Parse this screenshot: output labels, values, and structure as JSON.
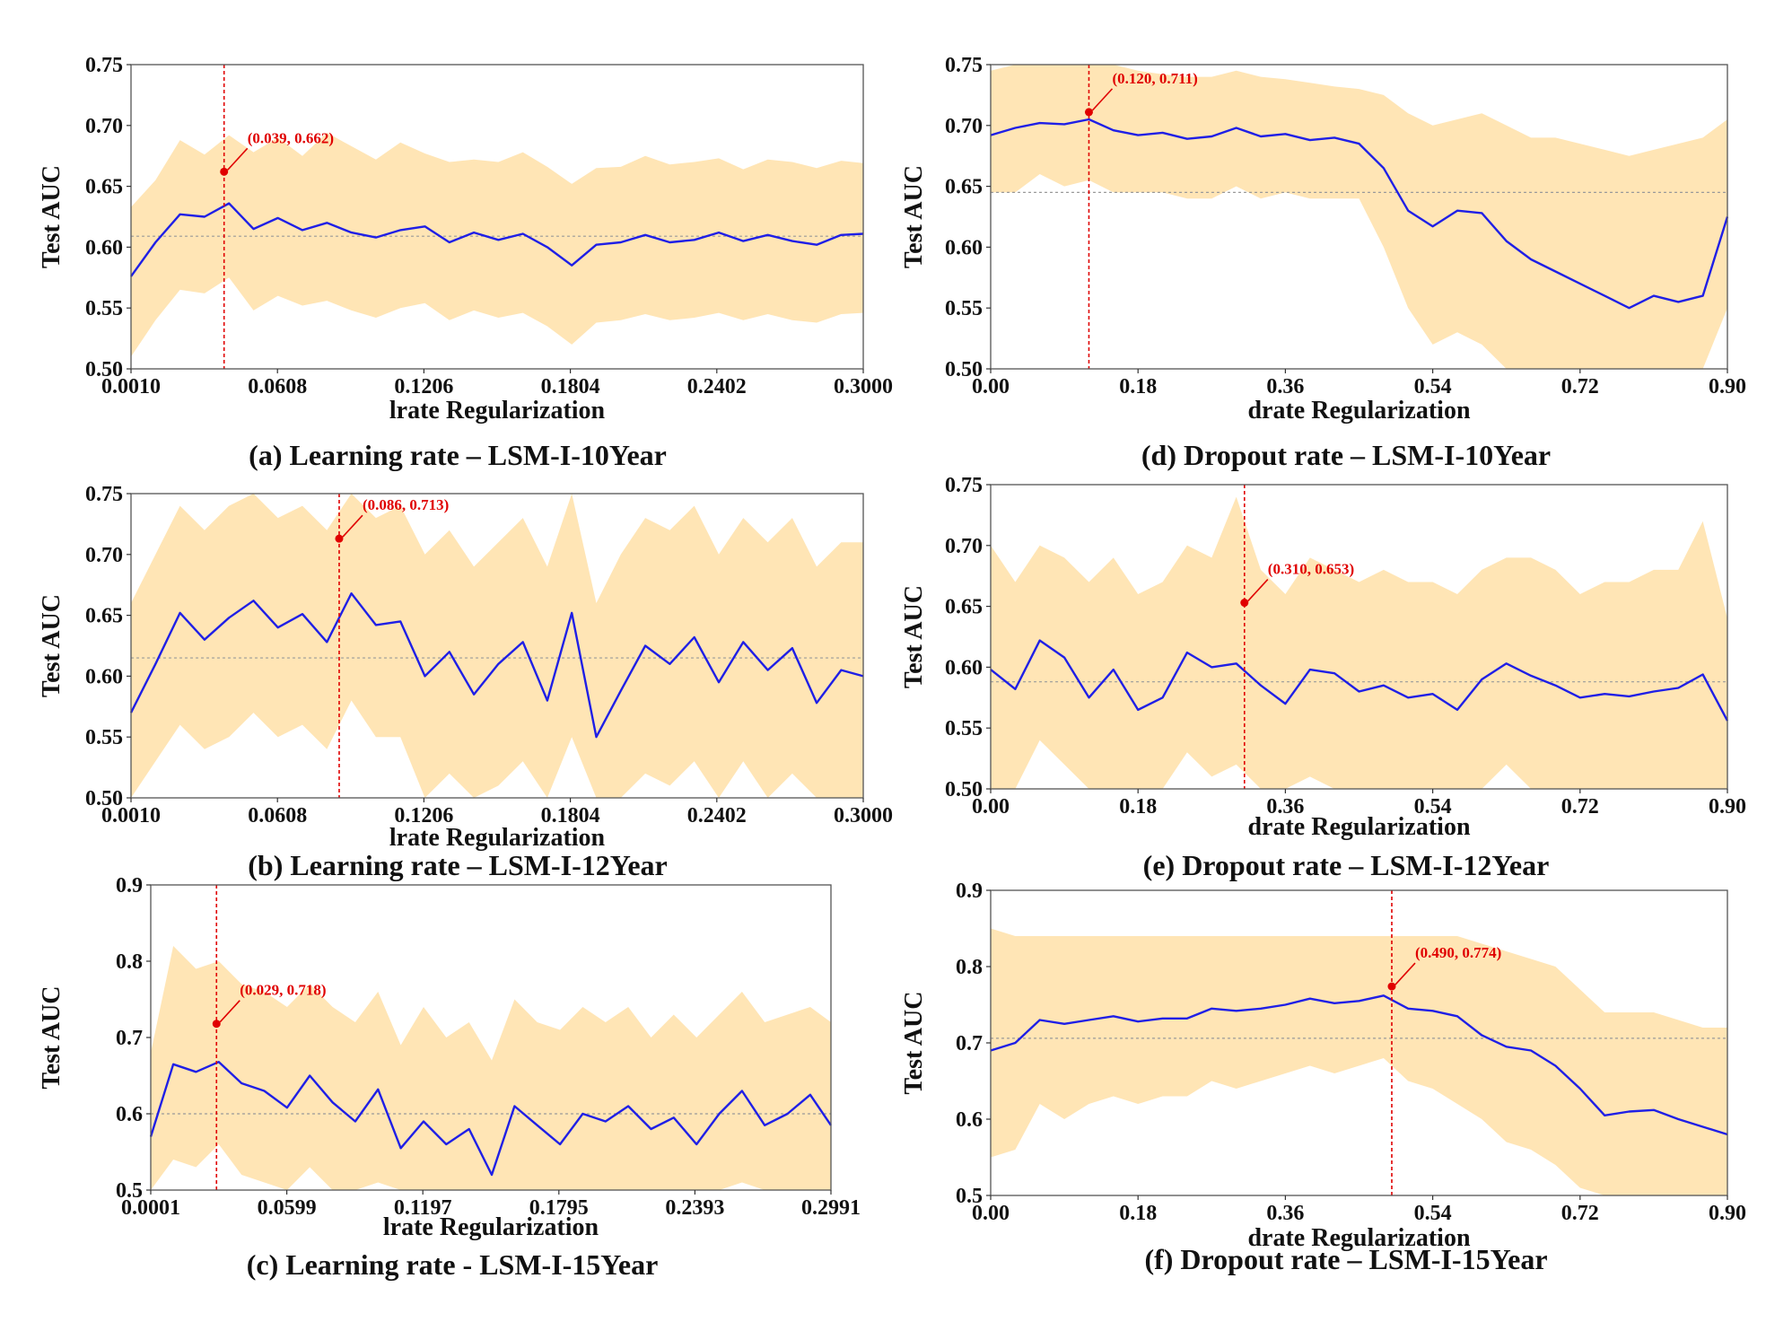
{
  "figure_colors": {
    "line": "#1f1fe6",
    "band": "#ffc55a",
    "marker": "#e00000",
    "mean": "#9a9a9a"
  },
  "chart_data": [
    {
      "type": "line",
      "panel": "a",
      "title": "(a) Learning rate – LSM-I-10Year",
      "xlabel": "lrate Regularization",
      "ylabel": "Test AUC",
      "xlim": [
        0.001,
        0.3
      ],
      "ylim": [
        0.5,
        0.75
      ],
      "xticks": [
        0.001,
        0.0608,
        0.1206,
        0.1804,
        0.2402,
        0.3
      ],
      "xtick_labels": [
        "0.0010",
        "0.0608",
        "0.1206",
        "0.1804",
        "0.2402",
        "0.3000"
      ],
      "yticks": [
        0.5,
        0.55,
        0.6,
        0.65,
        0.7,
        0.75
      ],
      "ytick_labels": [
        "0.50",
        "0.55",
        "0.60",
        "0.65",
        "0.70",
        "0.75"
      ],
      "mean_line": 0.609,
      "annotation": {
        "x": 0.039,
        "y": 0.662,
        "label": "(0.039, 0.662)"
      },
      "series": {
        "name": "Test AUC",
        "x": [
          0.001,
          0.011,
          0.021,
          0.031,
          0.041,
          0.051,
          0.061,
          0.071,
          0.081,
          0.091,
          0.101,
          0.111,
          0.121,
          0.131,
          0.141,
          0.151,
          0.161,
          0.171,
          0.181,
          0.191,
          0.201,
          0.211,
          0.221,
          0.231,
          0.241,
          0.251,
          0.261,
          0.271,
          0.281,
          0.291,
          0.3
        ],
        "y": [
          0.576,
          0.604,
          0.627,
          0.625,
          0.636,
          0.615,
          0.624,
          0.614,
          0.62,
          0.612,
          0.608,
          0.614,
          0.617,
          0.604,
          0.612,
          0.606,
          0.611,
          0.6,
          0.585,
          0.602,
          0.604,
          0.61,
          0.604,
          0.606,
          0.612,
          0.605,
          0.61,
          0.605,
          0.602,
          0.61,
          0.611
        ]
      },
      "band": {
        "upper": [
          0.633,
          0.655,
          0.688,
          0.676,
          0.692,
          0.678,
          0.69,
          0.675,
          0.694,
          0.683,
          0.672,
          0.686,
          0.677,
          0.67,
          0.672,
          0.67,
          0.678,
          0.666,
          0.652,
          0.665,
          0.666,
          0.675,
          0.668,
          0.67,
          0.673,
          0.664,
          0.672,
          0.67,
          0.665,
          0.671,
          0.669
        ],
        "lower": [
          0.51,
          0.54,
          0.565,
          0.562,
          0.575,
          0.548,
          0.56,
          0.552,
          0.556,
          0.548,
          0.542,
          0.55,
          0.554,
          0.54,
          0.548,
          0.542,
          0.546,
          0.535,
          0.52,
          0.538,
          0.54,
          0.545,
          0.54,
          0.542,
          0.546,
          0.54,
          0.545,
          0.54,
          0.538,
          0.545,
          0.546
        ]
      }
    },
    {
      "type": "line",
      "panel": "b",
      "title": "(b) Learning rate – LSM-I-12Year",
      "xlabel": "lrate Regularization",
      "ylabel": "Test AUC",
      "xlim": [
        0.001,
        0.3
      ],
      "ylim": [
        0.5,
        0.75
      ],
      "xticks": [
        0.001,
        0.0608,
        0.1206,
        0.1804,
        0.2402,
        0.3
      ],
      "xtick_labels": [
        "0.0010",
        "0.0608",
        "0.1206",
        "0.1804",
        "0.2402",
        "0.3000"
      ],
      "yticks": [
        0.5,
        0.55,
        0.6,
        0.65,
        0.7,
        0.75
      ],
      "ytick_labels": [
        "0.50",
        "0.55",
        "0.60",
        "0.65",
        "0.70",
        "0.75"
      ],
      "mean_line": 0.615,
      "annotation": {
        "x": 0.086,
        "y": 0.713,
        "label": "(0.086, 0.713)"
      },
      "series": {
        "name": "Test AUC",
        "x": [
          0.001,
          0.011,
          0.021,
          0.031,
          0.041,
          0.051,
          0.061,
          0.071,
          0.081,
          0.091,
          0.101,
          0.111,
          0.121,
          0.131,
          0.141,
          0.151,
          0.161,
          0.171,
          0.181,
          0.191,
          0.201,
          0.211,
          0.221,
          0.231,
          0.241,
          0.251,
          0.261,
          0.271,
          0.281,
          0.291,
          0.3
        ],
        "y": [
          0.57,
          0.61,
          0.652,
          0.63,
          0.648,
          0.662,
          0.64,
          0.651,
          0.628,
          0.668,
          0.642,
          0.645,
          0.6,
          0.62,
          0.585,
          0.61,
          0.628,
          0.58,
          0.652,
          0.55,
          0.588,
          0.625,
          0.61,
          0.632,
          0.595,
          0.628,
          0.605,
          0.623,
          0.578,
          0.605,
          0.6
        ]
      },
      "band": {
        "upper": [
          0.66,
          0.7,
          0.74,
          0.72,
          0.74,
          0.75,
          0.73,
          0.74,
          0.72,
          0.75,
          0.73,
          0.74,
          0.7,
          0.72,
          0.69,
          0.71,
          0.73,
          0.69,
          0.75,
          0.66,
          0.7,
          0.73,
          0.72,
          0.74,
          0.7,
          0.73,
          0.71,
          0.73,
          0.69,
          0.71,
          0.71
        ],
        "lower": [
          0.5,
          0.53,
          0.56,
          0.54,
          0.55,
          0.57,
          0.55,
          0.56,
          0.54,
          0.58,
          0.55,
          0.55,
          0.5,
          0.52,
          0.5,
          0.51,
          0.53,
          0.5,
          0.55,
          0.5,
          0.5,
          0.52,
          0.51,
          0.53,
          0.5,
          0.53,
          0.5,
          0.52,
          0.5,
          0.5,
          0.5
        ]
      }
    },
    {
      "type": "line",
      "panel": "c",
      "title": "(c) Learning rate - LSM-I-15Year",
      "xlabel": "lrate Regularization",
      "ylabel": "Test AUC",
      "xlim": [
        0.0001,
        0.2991
      ],
      "ylim": [
        0.5,
        0.9
      ],
      "xticks": [
        0.0001,
        0.0599,
        0.1197,
        0.1795,
        0.2393,
        0.2991
      ],
      "xtick_labels": [
        "0.0001",
        "0.0599",
        "0.1197",
        "0.1795",
        "0.2393",
        "0.2991"
      ],
      "yticks": [
        0.5,
        0.6,
        0.7,
        0.8,
        0.9
      ],
      "ytick_labels": [
        "0.5",
        "0.6",
        "0.7",
        "0.8",
        "0.9"
      ],
      "mean_line": 0.6,
      "annotation": {
        "x": 0.029,
        "y": 0.718,
        "label": "(0.029, 0.718)"
      },
      "series": {
        "name": "Test AUC",
        "x": [
          0.0001,
          0.01,
          0.02,
          0.03,
          0.04,
          0.05,
          0.06,
          0.07,
          0.08,
          0.09,
          0.1,
          0.11,
          0.12,
          0.13,
          0.14,
          0.15,
          0.16,
          0.17,
          0.18,
          0.19,
          0.2,
          0.21,
          0.22,
          0.23,
          0.24,
          0.25,
          0.26,
          0.27,
          0.28,
          0.29,
          0.2991
        ],
        "y": [
          0.57,
          0.665,
          0.655,
          0.668,
          0.64,
          0.63,
          0.608,
          0.65,
          0.615,
          0.59,
          0.632,
          0.555,
          0.59,
          0.56,
          0.58,
          0.52,
          0.61,
          0.585,
          0.56,
          0.6,
          0.59,
          0.61,
          0.58,
          0.595,
          0.56,
          0.6,
          0.63,
          0.585,
          0.6,
          0.625,
          0.585
        ]
      },
      "band": {
        "upper": [
          0.68,
          0.82,
          0.79,
          0.8,
          0.77,
          0.76,
          0.74,
          0.77,
          0.74,
          0.72,
          0.76,
          0.69,
          0.74,
          0.7,
          0.72,
          0.67,
          0.75,
          0.72,
          0.71,
          0.74,
          0.72,
          0.74,
          0.7,
          0.73,
          0.7,
          0.73,
          0.76,
          0.72,
          0.73,
          0.74,
          0.72
        ],
        "lower": [
          0.5,
          0.54,
          0.53,
          0.56,
          0.52,
          0.51,
          0.5,
          0.53,
          0.5,
          0.5,
          0.51,
          0.5,
          0.5,
          0.5,
          0.5,
          0.5,
          0.5,
          0.5,
          0.5,
          0.5,
          0.5,
          0.5,
          0.5,
          0.5,
          0.5,
          0.5,
          0.51,
          0.5,
          0.5,
          0.5,
          0.5
        ]
      }
    },
    {
      "type": "line",
      "panel": "d",
      "title": "(d) Dropout rate – LSM-I-10Year",
      "xlabel": "drate Regularization",
      "ylabel": "Test AUC",
      "xlim": [
        0.0,
        0.9
      ],
      "ylim": [
        0.5,
        0.75
      ],
      "xticks": [
        0.0,
        0.18,
        0.36,
        0.54,
        0.72,
        0.9
      ],
      "xtick_labels": [
        "0.00",
        "0.18",
        "0.36",
        "0.54",
        "0.72",
        "0.90"
      ],
      "yticks": [
        0.5,
        0.55,
        0.6,
        0.65,
        0.7,
        0.75
      ],
      "ytick_labels": [
        "0.50",
        "0.55",
        "0.60",
        "0.65",
        "0.70",
        "0.75"
      ],
      "mean_line": 0.645,
      "annotation": {
        "x": 0.12,
        "y": 0.711,
        "label": "(0.120, 0.711)"
      },
      "series": {
        "name": "Test AUC",
        "x": [
          0.0,
          0.03,
          0.06,
          0.09,
          0.12,
          0.15,
          0.18,
          0.21,
          0.24,
          0.27,
          0.3,
          0.33,
          0.36,
          0.39,
          0.42,
          0.45,
          0.48,
          0.51,
          0.54,
          0.57,
          0.6,
          0.63,
          0.66,
          0.69,
          0.72,
          0.75,
          0.78,
          0.81,
          0.84,
          0.87,
          0.9
        ],
        "y": [
          0.692,
          0.698,
          0.702,
          0.701,
          0.705,
          0.696,
          0.692,
          0.694,
          0.689,
          0.691,
          0.698,
          0.691,
          0.693,
          0.688,
          0.69,
          0.685,
          0.665,
          0.63,
          0.617,
          0.63,
          0.628,
          0.605,
          0.59,
          0.58,
          0.57,
          0.56,
          0.55,
          0.56,
          0.555,
          0.56,
          0.625
        ]
      },
      "band": {
        "upper": [
          0.745,
          0.75,
          0.75,
          0.75,
          0.75,
          0.75,
          0.745,
          0.742,
          0.74,
          0.74,
          0.745,
          0.74,
          0.738,
          0.735,
          0.732,
          0.73,
          0.725,
          0.71,
          0.7,
          0.705,
          0.71,
          0.7,
          0.69,
          0.69,
          0.685,
          0.68,
          0.675,
          0.68,
          0.685,
          0.69,
          0.705
        ],
        "lower": [
          0.645,
          0.645,
          0.66,
          0.65,
          0.655,
          0.645,
          0.645,
          0.645,
          0.64,
          0.64,
          0.65,
          0.64,
          0.645,
          0.64,
          0.64,
          0.64,
          0.6,
          0.55,
          0.52,
          0.53,
          0.52,
          0.5,
          0.5,
          0.5,
          0.5,
          0.5,
          0.5,
          0.5,
          0.5,
          0.5,
          0.55
        ]
      }
    },
    {
      "type": "line",
      "panel": "e",
      "title": "(e) Dropout rate – LSM-I-12Year",
      "xlabel": "drate Regularization",
      "ylabel": "Test AUC",
      "xlim": [
        0.0,
        0.9
      ],
      "ylim": [
        0.5,
        0.75
      ],
      "xticks": [
        0.0,
        0.18,
        0.36,
        0.54,
        0.72,
        0.9
      ],
      "xtick_labels": [
        "0.00",
        "0.18",
        "0.36",
        "0.54",
        "0.72",
        "0.90"
      ],
      "yticks": [
        0.5,
        0.55,
        0.6,
        0.65,
        0.7,
        0.75
      ],
      "ytick_labels": [
        "0.50",
        "0.55",
        "0.60",
        "0.65",
        "0.70",
        "0.75"
      ],
      "mean_line": 0.588,
      "annotation": {
        "x": 0.31,
        "y": 0.653,
        "label": "(0.310, 0.653)"
      },
      "series": {
        "name": "Test AUC",
        "x": [
          0.0,
          0.03,
          0.06,
          0.09,
          0.12,
          0.15,
          0.18,
          0.21,
          0.24,
          0.27,
          0.3,
          0.33,
          0.36,
          0.39,
          0.42,
          0.45,
          0.48,
          0.51,
          0.54,
          0.57,
          0.6,
          0.63,
          0.66,
          0.69,
          0.72,
          0.75,
          0.78,
          0.81,
          0.84,
          0.87,
          0.9
        ],
        "y": [
          0.598,
          0.582,
          0.622,
          0.608,
          0.575,
          0.598,
          0.565,
          0.575,
          0.612,
          0.6,
          0.603,
          0.585,
          0.57,
          0.598,
          0.595,
          0.58,
          0.585,
          0.575,
          0.578,
          0.565,
          0.59,
          0.603,
          0.593,
          0.585,
          0.575,
          0.578,
          0.576,
          0.58,
          0.583,
          0.594,
          0.556
        ]
      },
      "band": {
        "upper": [
          0.7,
          0.67,
          0.7,
          0.69,
          0.67,
          0.69,
          0.66,
          0.67,
          0.7,
          0.69,
          0.74,
          0.68,
          0.66,
          0.69,
          0.68,
          0.67,
          0.68,
          0.67,
          0.67,
          0.66,
          0.68,
          0.69,
          0.69,
          0.68,
          0.66,
          0.67,
          0.67,
          0.68,
          0.68,
          0.72,
          0.64
        ],
        "lower": [
          0.5,
          0.5,
          0.54,
          0.52,
          0.5,
          0.5,
          0.5,
          0.5,
          0.53,
          0.51,
          0.52,
          0.5,
          0.5,
          0.51,
          0.5,
          0.5,
          0.5,
          0.5,
          0.5,
          0.5,
          0.5,
          0.52,
          0.5,
          0.5,
          0.5,
          0.5,
          0.5,
          0.5,
          0.5,
          0.5,
          0.5
        ]
      }
    },
    {
      "type": "line",
      "panel": "f",
      "title": "(f) Dropout rate – LSM-I-15Year",
      "xlabel": "drate Regularization",
      "ylabel": "Test AUC",
      "xlim": [
        0.0,
        0.9
      ],
      "ylim": [
        0.5,
        0.9
      ],
      "xticks": [
        0.0,
        0.18,
        0.36,
        0.54,
        0.72,
        0.9
      ],
      "xtick_labels": [
        "0.00",
        "0.18",
        "0.36",
        "0.54",
        "0.72",
        "0.90"
      ],
      "yticks": [
        0.5,
        0.6,
        0.7,
        0.8,
        0.9
      ],
      "ytick_labels": [
        "0.5",
        "0.6",
        "0.7",
        "0.8",
        "0.9"
      ],
      "mean_line": 0.706,
      "annotation": {
        "x": 0.49,
        "y": 0.774,
        "label": "(0.490, 0.774)"
      },
      "series": {
        "name": "Test AUC",
        "x": [
          0.0,
          0.03,
          0.06,
          0.09,
          0.12,
          0.15,
          0.18,
          0.21,
          0.24,
          0.27,
          0.3,
          0.33,
          0.36,
          0.39,
          0.42,
          0.45,
          0.48,
          0.51,
          0.54,
          0.57,
          0.6,
          0.63,
          0.66,
          0.69,
          0.72,
          0.75,
          0.78,
          0.81,
          0.84,
          0.87,
          0.9
        ],
        "y": [
          0.69,
          0.7,
          0.73,
          0.725,
          0.73,
          0.735,
          0.728,
          0.732,
          0.732,
          0.745,
          0.742,
          0.745,
          0.75,
          0.758,
          0.752,
          0.755,
          0.762,
          0.745,
          0.742,
          0.735,
          0.71,
          0.695,
          0.69,
          0.67,
          0.64,
          0.605,
          0.61,
          0.612,
          0.6,
          0.59,
          0.58
        ]
      },
      "band": {
        "upper": [
          0.85,
          0.84,
          0.84,
          0.84,
          0.84,
          0.84,
          0.84,
          0.84,
          0.84,
          0.84,
          0.84,
          0.84,
          0.84,
          0.84,
          0.84,
          0.84,
          0.84,
          0.84,
          0.84,
          0.84,
          0.83,
          0.82,
          0.81,
          0.8,
          0.77,
          0.74,
          0.74,
          0.74,
          0.73,
          0.72,
          0.72
        ],
        "lower": [
          0.55,
          0.56,
          0.62,
          0.6,
          0.62,
          0.63,
          0.62,
          0.63,
          0.63,
          0.65,
          0.64,
          0.65,
          0.66,
          0.67,
          0.66,
          0.67,
          0.68,
          0.65,
          0.64,
          0.62,
          0.6,
          0.57,
          0.56,
          0.54,
          0.51,
          0.5,
          0.5,
          0.5,
          0.5,
          0.5,
          0.5
        ]
      }
    }
  ]
}
